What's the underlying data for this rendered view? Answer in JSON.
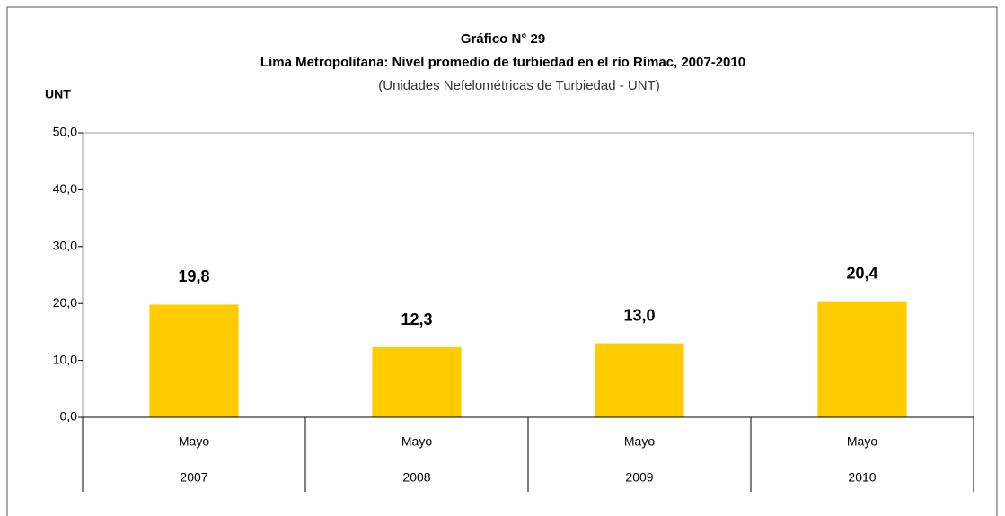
{
  "chart_data": {
    "type": "bar",
    "title": "Gráfico N° 29",
    "subtitle": "Lima Metropolitana: Nivel promedio de turbiedad en el río Rímac, 2007-2010",
    "units_note": "(Unidades Nefelométricas de Turbiedad - UNT)",
    "y_label": "UNT",
    "categories": [
      {
        "month": "Mayo",
        "year": "2007"
      },
      {
        "month": "Mayo",
        "year": "2008"
      },
      {
        "month": "Mayo",
        "year": "2009"
      },
      {
        "month": "Mayo",
        "year": "2010"
      }
    ],
    "values": [
      19.8,
      12.3,
      13.0,
      20.4
    ],
    "value_labels": [
      "19,8",
      "12,3",
      "13,0",
      "20,4"
    ],
    "color": "#ffcc00",
    "ylim": [
      0,
      50
    ],
    "yticks": [
      {
        "value": 0,
        "label": "0,0"
      },
      {
        "value": 10,
        "label": "10,0"
      },
      {
        "value": 20,
        "label": "20,0"
      },
      {
        "value": 30,
        "label": "30,0"
      },
      {
        "value": 40,
        "label": "40,0"
      },
      {
        "value": 50,
        "label": "50,0"
      }
    ],
    "grid": false
  }
}
